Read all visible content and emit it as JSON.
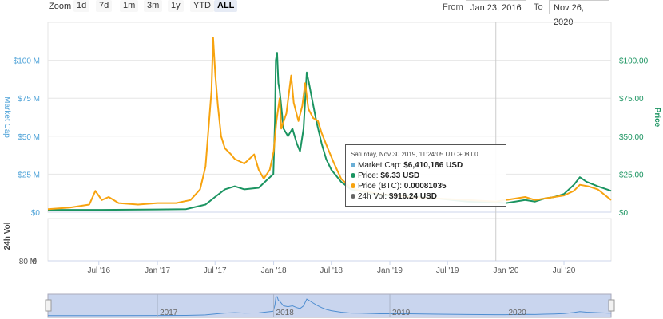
{
  "range_selector": {
    "zoom_label": "Zoom",
    "buttons": [
      "1d",
      "7d",
      "1m",
      "3m",
      "1y",
      "YTD",
      "ALL"
    ],
    "active": "ALL",
    "from_label": "From",
    "from_value": "Jan 23, 2016",
    "to_label": "To",
    "to_value": "Nov 26, 2020"
  },
  "tooltip": {
    "title": "Saturday, Nov 30 2019, 11:24:05 UTC+08:00",
    "rows": [
      {
        "label": "Market Cap:",
        "value": "$6,410,186 USD",
        "color": "#6aaed6"
      },
      {
        "label": "Price:",
        "value": "$6.33 USD",
        "color": "#1b9461"
      },
      {
        "label": "Price (BTC):",
        "value": "0.00081035",
        "color": "#f7a30f"
      },
      {
        "label": "24h Vol:",
        "value": "$916.24 USD",
        "color": "#666666"
      }
    ]
  },
  "navigator": {
    "year_labels": [
      "2017",
      "2018",
      "2019",
      "2020"
    ]
  },
  "chart_data": {
    "type": "line",
    "title": "",
    "left_axis": {
      "label": "Market Cap",
      "ticks": [
        "$0",
        "$25 M",
        "$50 M",
        "$75 M",
        "$100 M"
      ],
      "range": [
        0,
        125000000
      ],
      "color": "#4fa3d8"
    },
    "right_axis": {
      "label": "Price",
      "ticks": [
        "$0",
        "$25.00",
        "$50.00",
        "$75.00",
        "$100.00"
      ],
      "range": [
        0,
        125
      ],
      "color": "#1b9461"
    },
    "volume_axis": {
      "label": "24h Vol",
      "ticks": [
        "0",
        "80 M"
      ],
      "range": [
        0,
        100000000
      ]
    },
    "x_tick_labels": [
      "Jul '16",
      "Jan '17",
      "Jul '17",
      "Jan '18",
      "Jul '18",
      "Jan '19",
      "Jul '19",
      "Jan '20",
      "Jul '20"
    ],
    "x_tick_dates": [
      "2016-07-01",
      "2017-01-01",
      "2017-07-01",
      "2018-01-01",
      "2018-07-01",
      "2019-01-01",
      "2019-07-01",
      "2020-01-01",
      "2020-07-01"
    ],
    "x_range": [
      "2016-01-23",
      "2020-11-26"
    ],
    "crosshair_date": "2019-11-30",
    "grid": true,
    "legend": "none",
    "series": [
      {
        "name": "Price",
        "color": "#1b9461",
        "points": [
          [
            "2016-01-23",
            1.5
          ],
          [
            "2016-07-01",
            1.5
          ],
          [
            "2017-01-01",
            1.8
          ],
          [
            "2017-04-01",
            2.0
          ],
          [
            "2017-06-01",
            5
          ],
          [
            "2017-07-01",
            10
          ],
          [
            "2017-08-01",
            15
          ],
          [
            "2017-09-01",
            17
          ],
          [
            "2017-10-01",
            15
          ],
          [
            "2017-11-15",
            16
          ],
          [
            "2017-12-15",
            22
          ],
          [
            "2017-12-31",
            25
          ],
          [
            "2018-01-05",
            60
          ],
          [
            "2018-01-08",
            100
          ],
          [
            "2018-01-12",
            105
          ],
          [
            "2018-01-16",
            85
          ],
          [
            "2018-01-20",
            80
          ],
          [
            "2018-02-01",
            55
          ],
          [
            "2018-02-15",
            50
          ],
          [
            "2018-03-01",
            55
          ],
          [
            "2018-03-15",
            45
          ],
          [
            "2018-03-25",
            40
          ],
          [
            "2018-04-05",
            55
          ],
          [
            "2018-04-15",
            92
          ],
          [
            "2018-04-22",
            85
          ],
          [
            "2018-05-01",
            75
          ],
          [
            "2018-05-15",
            60
          ],
          [
            "2018-06-01",
            45
          ],
          [
            "2018-06-15",
            35
          ],
          [
            "2018-07-01",
            28
          ],
          [
            "2018-08-01",
            20
          ],
          [
            "2018-09-01",
            15
          ],
          [
            "2018-10-01",
            14
          ],
          [
            "2018-12-01",
            11
          ],
          [
            "2019-03-01",
            11
          ],
          [
            "2019-06-01",
            9
          ],
          [
            "2019-09-01",
            7
          ],
          [
            "2019-11-30",
            6.33
          ],
          [
            "2020-01-01",
            6
          ],
          [
            "2020-03-01",
            8
          ],
          [
            "2020-04-01",
            7
          ],
          [
            "2020-05-01",
            9
          ],
          [
            "2020-06-01",
            10
          ],
          [
            "2020-07-01",
            12
          ],
          [
            "2020-08-01",
            18
          ],
          [
            "2020-08-20",
            23
          ],
          [
            "2020-09-10",
            20
          ],
          [
            "2020-10-15",
            17
          ],
          [
            "2020-11-26",
            14
          ]
        ]
      },
      {
        "name": "Price (BTC)",
        "color": "#f7a30f",
        "points": [
          [
            "2016-01-23",
            2
          ],
          [
            "2016-04-01",
            3
          ],
          [
            "2016-06-01",
            5
          ],
          [
            "2016-06-20",
            14
          ],
          [
            "2016-07-10",
            8
          ],
          [
            "2016-08-01",
            10
          ],
          [
            "2016-09-01",
            6
          ],
          [
            "2016-11-01",
            5
          ],
          [
            "2017-01-01",
            6
          ],
          [
            "2017-03-01",
            6
          ],
          [
            "2017-04-15",
            8
          ],
          [
            "2017-05-15",
            15
          ],
          [
            "2017-06-01",
            30
          ],
          [
            "2017-06-20",
            80
          ],
          [
            "2017-06-25",
            115
          ],
          [
            "2017-07-02",
            90
          ],
          [
            "2017-07-10",
            70
          ],
          [
            "2017-07-20",
            50
          ],
          [
            "2017-08-01",
            42
          ],
          [
            "2017-08-20",
            38
          ],
          [
            "2017-09-01",
            35
          ],
          [
            "2017-10-01",
            32
          ],
          [
            "2017-11-01",
            38
          ],
          [
            "2017-11-15",
            28
          ],
          [
            "2017-12-01",
            22
          ],
          [
            "2017-12-20",
            28
          ],
          [
            "2018-01-01",
            40
          ],
          [
            "2018-01-10",
            60
          ],
          [
            "2018-01-20",
            75
          ],
          [
            "2018-01-25",
            55
          ],
          [
            "2018-02-10",
            65
          ],
          [
            "2018-02-25",
            90
          ],
          [
            "2018-03-05",
            72
          ],
          [
            "2018-03-20",
            60
          ],
          [
            "2018-04-01",
            70
          ],
          [
            "2018-04-10",
            85
          ],
          [
            "2018-04-20",
            68
          ],
          [
            "2018-05-05",
            62
          ],
          [
            "2018-05-20",
            60
          ],
          [
            "2018-06-01",
            52
          ],
          [
            "2018-06-20",
            42
          ],
          [
            "2018-07-10",
            32
          ],
          [
            "2018-08-01",
            22
          ],
          [
            "2018-09-01",
            16
          ],
          [
            "2018-10-01",
            14
          ],
          [
            "2018-12-01",
            12
          ],
          [
            "2019-03-01",
            10
          ],
          [
            "2019-06-01",
            9
          ],
          [
            "2019-09-01",
            8
          ],
          [
            "2019-11-30",
            7
          ],
          [
            "2020-01-01",
            8
          ],
          [
            "2020-03-01",
            10
          ],
          [
            "2020-04-01",
            8
          ],
          [
            "2020-05-01",
            9
          ],
          [
            "2020-06-01",
            10
          ],
          [
            "2020-07-01",
            11
          ],
          [
            "2020-08-01",
            14
          ],
          [
            "2020-08-20",
            18
          ],
          [
            "2020-09-15",
            17
          ],
          [
            "2020-10-15",
            15
          ],
          [
            "2020-11-26",
            8
          ]
        ]
      }
    ],
    "volume": [
      [
        "2018-01-05",
        5
      ],
      [
        "2018-01-10",
        18
      ],
      [
        "2018-01-15",
        8
      ],
      [
        "2018-02-01",
        4
      ],
      [
        "2018-03-01",
        10
      ],
      [
        "2018-03-10",
        30
      ],
      [
        "2018-03-15",
        95
      ],
      [
        "2018-03-20",
        40
      ],
      [
        "2018-03-25",
        60
      ],
      [
        "2018-04-01",
        18
      ],
      [
        "2018-04-10",
        75
      ],
      [
        "2018-04-20",
        25
      ],
      [
        "2018-05-01",
        12
      ],
      [
        "2018-05-20",
        8
      ],
      [
        "2018-06-10",
        6
      ],
      [
        "2017-12-20",
        3
      ],
      [
        "2017-11-15",
        2
      ]
    ]
  }
}
